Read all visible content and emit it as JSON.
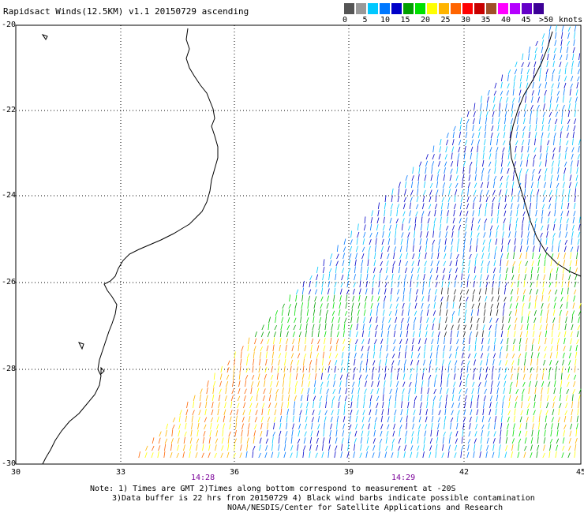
{
  "title": "Rapidsact Winds(12.5KM) v1.1 20150729 ascending",
  "legend": {
    "colors": [
      "#555555",
      "#999999",
      "#00c8ff",
      "#0078ff",
      "#0000c8",
      "#00a000",
      "#00e000",
      "#ffff00",
      "#ffb400",
      "#ff6400",
      "#ff0000",
      "#c80000",
      "#a05028",
      "#ff00ff",
      "#b400ff",
      "#6400c8",
      "#3c0096"
    ],
    "ticks": [
      "0",
      "5",
      "10",
      "15",
      "20",
      "25",
      "30",
      "35",
      "40",
      "45",
      ">50"
    ],
    "unit": "knots"
  },
  "map": {
    "lat_labels": [
      "-20",
      "-22",
      "-24",
      "-26",
      "-28",
      "-30"
    ],
    "lon_labels": [
      "30",
      "33",
      "36",
      "39",
      "42",
      "45"
    ],
    "time_labels": [
      "14:28",
      "14:29"
    ]
  },
  "notes": {
    "line1": "Note: 1) Times are GMT 2)Times along bottom correspond to measurement at -20S",
    "line2": "3)Data buffer is 22 hrs from 20150729 4) Black wind barbs indicate possible contamination",
    "line3": "NOAA/NESDIS/Center for Satellite Applications and Research"
  }
}
